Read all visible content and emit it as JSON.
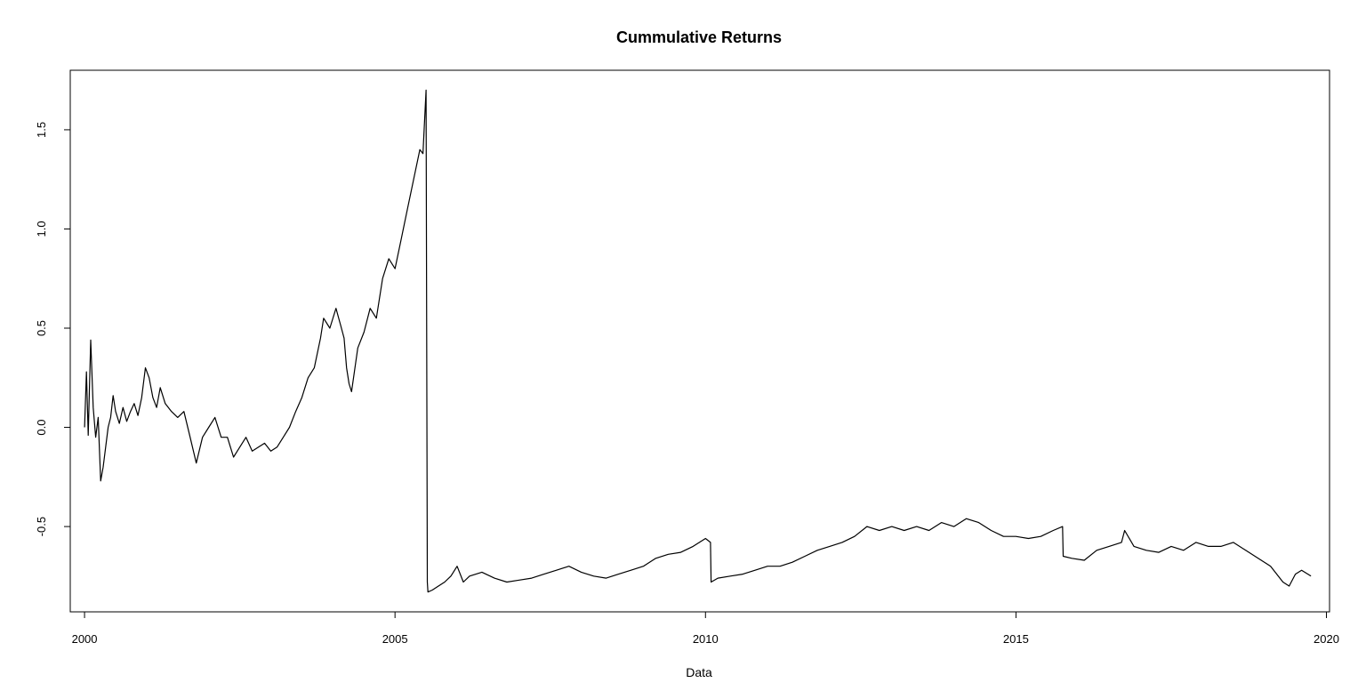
{
  "chart_data": {
    "type": "line",
    "title": "Cummulative Returns",
    "xlabel": "Data",
    "ylabel": "",
    "xlim": [
      1999.77,
      2020.05
    ],
    "ylim": [
      -0.93,
      1.8
    ],
    "x_ticks": [
      2000,
      2005,
      2010,
      2015,
      2020
    ],
    "y_ticks": [
      -0.5,
      0.0,
      0.5,
      1.0,
      1.5
    ],
    "x_tick_labels": [
      "2000",
      "2005",
      "2010",
      "2015",
      "2020"
    ],
    "y_tick_labels": [
      "-0.5",
      "0.0",
      "0.5",
      "1.0",
      "1.5"
    ],
    "grid": false,
    "line_color": "#000000",
    "series": [
      {
        "x": [
          2000.0,
          2000.03,
          2000.06,
          2000.1,
          2000.14,
          2000.18,
          2000.22,
          2000.26,
          2000.3,
          2000.34,
          2000.38,
          2000.42,
          2000.46,
          2000.5,
          2000.56,
          2000.62,
          2000.68,
          2000.74,
          2000.8,
          2000.86,
          2000.92,
          2000.98,
          2001.04,
          2001.1,
          2001.16,
          2001.22,
          2001.3,
          2001.4,
          2001.5,
          2001.6,
          2001.7,
          2001.8,
          2001.9,
          2002.0,
          2002.1,
          2002.2,
          2002.3,
          2002.4,
          2002.5,
          2002.6,
          2002.7,
          2002.8,
          2002.9,
          2003.0,
          2003.1,
          2003.2,
          2003.3,
          2003.4,
          2003.5,
          2003.6,
          2003.7,
          2003.8,
          2003.85,
          2003.95,
          2004.05,
          2004.12,
          2004.18,
          2004.22,
          2004.26,
          2004.3,
          2004.4,
          2004.5,
          2004.6,
          2004.7,
          2004.8,
          2004.9,
          2005.0,
          2005.1,
          2005.2,
          2005.3,
          2005.4,
          2005.45,
          2005.5,
          2005.51,
          2005.52,
          2005.53,
          2005.6,
          2005.7,
          2005.8,
          2005.9,
          2006.0,
          2006.1,
          2006.2,
          2006.4,
          2006.6,
          2006.8,
          2007.0,
          2007.2,
          2007.4,
          2007.6,
          2007.8,
          2008.0,
          2008.2,
          2008.4,
          2008.6,
          2008.8,
          2009.0,
          2009.2,
          2009.4,
          2009.6,
          2009.8,
          2010.0,
          2010.08,
          2010.09,
          2010.2,
          2010.4,
          2010.6,
          2010.8,
          2011.0,
          2011.2,
          2011.4,
          2011.6,
          2011.8,
          2012.0,
          2012.2,
          2012.4,
          2012.6,
          2012.8,
          2013.0,
          2013.2,
          2013.4,
          2013.6,
          2013.8,
          2014.0,
          2014.2,
          2014.4,
          2014.6,
          2014.8,
          2015.0,
          2015.2,
          2015.4,
          2015.6,
          2015.75,
          2015.76,
          2015.9,
          2016.1,
          2016.3,
          2016.5,
          2016.7,
          2016.75,
          2016.9,
          2017.1,
          2017.3,
          2017.5,
          2017.7,
          2017.9,
          2018.1,
          2018.3,
          2018.5,
          2018.7,
          2018.9,
          2019.1,
          2019.3,
          2019.4,
          2019.5,
          2019.6,
          2019.75
        ],
        "values": [
          0.0,
          0.28,
          -0.04,
          0.44,
          0.1,
          -0.05,
          0.05,
          -0.27,
          -0.2,
          -0.1,
          0.0,
          0.05,
          0.16,
          0.08,
          0.02,
          0.1,
          0.03,
          0.08,
          0.12,
          0.06,
          0.15,
          0.3,
          0.25,
          0.15,
          0.1,
          0.2,
          0.12,
          0.08,
          0.05,
          0.08,
          -0.05,
          -0.18,
          -0.05,
          0.0,
          0.05,
          -0.05,
          -0.05,
          -0.15,
          -0.1,
          -0.05,
          -0.12,
          -0.1,
          -0.08,
          -0.12,
          -0.1,
          -0.05,
          0.0,
          0.08,
          0.15,
          0.25,
          0.3,
          0.45,
          0.55,
          0.5,
          0.6,
          0.52,
          0.45,
          0.3,
          0.22,
          0.18,
          0.4,
          0.48,
          0.6,
          0.55,
          0.75,
          0.85,
          0.8,
          0.95,
          1.1,
          1.25,
          1.4,
          1.38,
          1.7,
          0.45,
          -0.78,
          -0.83,
          -0.82,
          -0.8,
          -0.78,
          -0.75,
          -0.7,
          -0.78,
          -0.75,
          -0.73,
          -0.76,
          -0.78,
          -0.77,
          -0.76,
          -0.74,
          -0.72,
          -0.7,
          -0.73,
          -0.75,
          -0.76,
          -0.74,
          -0.72,
          -0.7,
          -0.66,
          -0.64,
          -0.63,
          -0.6,
          -0.56,
          -0.58,
          -0.78,
          -0.76,
          -0.75,
          -0.74,
          -0.72,
          -0.7,
          -0.7,
          -0.68,
          -0.65,
          -0.62,
          -0.6,
          -0.58,
          -0.55,
          -0.5,
          -0.52,
          -0.5,
          -0.52,
          -0.5,
          -0.52,
          -0.48,
          -0.5,
          -0.46,
          -0.48,
          -0.52,
          -0.55,
          -0.55,
          -0.56,
          -0.55,
          -0.52,
          -0.5,
          -0.65,
          -0.66,
          -0.67,
          -0.62,
          -0.6,
          -0.58,
          -0.52,
          -0.6,
          -0.62,
          -0.63,
          -0.6,
          -0.62,
          -0.58,
          -0.6,
          -0.6,
          -0.58,
          -0.62,
          -0.66,
          -0.7,
          -0.78,
          -0.8,
          -0.74,
          -0.72,
          -0.75
        ]
      }
    ]
  }
}
